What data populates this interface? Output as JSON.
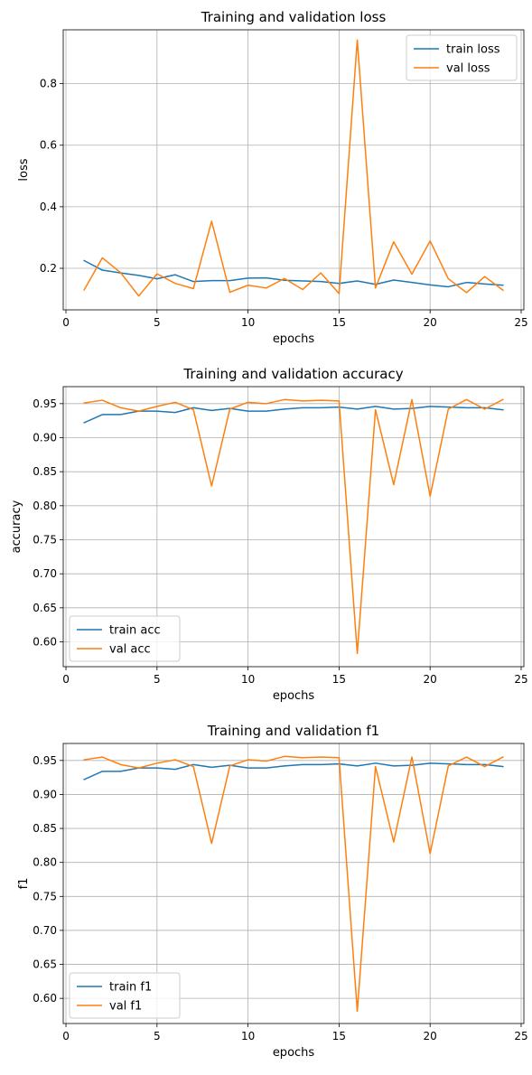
{
  "colors": {
    "train": "#1f77b4",
    "val": "#ff7f0e",
    "grid": "#b0b0b0"
  },
  "chart_data": [
    {
      "type": "line",
      "title": "Training and validation loss",
      "xlabel": "epochs",
      "ylabel": "loss",
      "xlim": [
        -0.15,
        25.15
      ],
      "ylim": [
        0.065,
        0.975
      ],
      "xticks": [
        0,
        5,
        10,
        15,
        20,
        25
      ],
      "yticks": [
        0.2,
        0.4,
        0.6,
        0.8
      ],
      "ytick_labels": [
        "0.2",
        "0.4",
        "0.6",
        "0.8"
      ],
      "grid": true,
      "legend": "top-right",
      "x": [
        1,
        2,
        3,
        4,
        5,
        6,
        7,
        8,
        9,
        10,
        11,
        12,
        13,
        14,
        15,
        16,
        17,
        18,
        19,
        20,
        21,
        22,
        23,
        24
      ],
      "series": [
        {
          "name": "train loss",
          "color": "#1f77b4",
          "values": [
            0.225,
            0.194,
            0.185,
            0.177,
            0.166,
            0.179,
            0.157,
            0.16,
            0.16,
            0.168,
            0.169,
            0.161,
            0.159,
            0.157,
            0.151,
            0.159,
            0.148,
            0.162,
            0.154,
            0.146,
            0.14,
            0.154,
            0.149,
            0.145
          ]
        },
        {
          "name": "val loss",
          "color": "#ff7f0e",
          "values": [
            0.13,
            0.234,
            0.186,
            0.11,
            0.182,
            0.151,
            0.134,
            0.353,
            0.122,
            0.145,
            0.136,
            0.167,
            0.131,
            0.185,
            0.118,
            0.942,
            0.136,
            0.286,
            0.181,
            0.289,
            0.166,
            0.121,
            0.173,
            0.129
          ]
        }
      ]
    },
    {
      "type": "line",
      "title": "Training and validation accuracy",
      "xlabel": "epochs",
      "ylabel": "accuracy",
      "xlim": [
        -0.15,
        25.15
      ],
      "ylim": [
        0.5635,
        0.975
      ],
      "xticks": [
        0,
        5,
        10,
        15,
        20,
        25
      ],
      "yticks": [
        0.6,
        0.65,
        0.7,
        0.75,
        0.8,
        0.85,
        0.9,
        0.95
      ],
      "ytick_labels": [
        "0.60",
        "0.65",
        "0.70",
        "0.75",
        "0.80",
        "0.85",
        "0.90",
        "0.95"
      ],
      "grid": true,
      "legend": "bottom-left",
      "x": [
        1,
        2,
        3,
        4,
        5,
        6,
        7,
        8,
        9,
        10,
        11,
        12,
        13,
        14,
        15,
        16,
        17,
        18,
        19,
        20,
        21,
        22,
        23,
        24
      ],
      "series": [
        {
          "name": "train acc",
          "color": "#1f77b4",
          "values": [
            0.922,
            0.934,
            0.934,
            0.939,
            0.939,
            0.937,
            0.944,
            0.94,
            0.943,
            0.939,
            0.939,
            0.942,
            0.944,
            0.944,
            0.945,
            0.942,
            0.946,
            0.942,
            0.943,
            0.946,
            0.945,
            0.944,
            0.944,
            0.941
          ]
        },
        {
          "name": "val acc",
          "color": "#ff7f0e",
          "values": [
            0.951,
            0.955,
            0.944,
            0.939,
            0.946,
            0.952,
            0.941,
            0.829,
            0.942,
            0.952,
            0.95,
            0.956,
            0.954,
            0.955,
            0.954,
            0.583,
            0.941,
            0.831,
            0.956,
            0.814,
            0.942,
            0.956,
            0.942,
            0.956
          ]
        }
      ]
    },
    {
      "type": "line",
      "title": "Training and validation f1",
      "xlabel": "epochs",
      "ylabel": "f1",
      "xlim": [
        -0.15,
        25.15
      ],
      "ylim": [
        0.563,
        0.975
      ],
      "xticks": [
        0,
        5,
        10,
        15,
        20,
        25
      ],
      "yticks": [
        0.6,
        0.65,
        0.7,
        0.75,
        0.8,
        0.85,
        0.9,
        0.95
      ],
      "ytick_labels": [
        "0.60",
        "0.65",
        "0.70",
        "0.75",
        "0.80",
        "0.85",
        "0.90",
        "0.95"
      ],
      "grid": true,
      "legend": "bottom-left",
      "x": [
        1,
        2,
        3,
        4,
        5,
        6,
        7,
        8,
        9,
        10,
        11,
        12,
        13,
        14,
        15,
        16,
        17,
        18,
        19,
        20,
        21,
        22,
        23,
        24
      ],
      "series": [
        {
          "name": "train f1",
          "color": "#1f77b4",
          "values": [
            0.922,
            0.934,
            0.934,
            0.939,
            0.939,
            0.937,
            0.944,
            0.94,
            0.943,
            0.939,
            0.939,
            0.942,
            0.944,
            0.944,
            0.945,
            0.942,
            0.946,
            0.942,
            0.943,
            0.946,
            0.945,
            0.944,
            0.944,
            0.941
          ]
        },
        {
          "name": "val f1",
          "color": "#ff7f0e",
          "values": [
            0.951,
            0.955,
            0.944,
            0.939,
            0.946,
            0.951,
            0.941,
            0.828,
            0.942,
            0.951,
            0.949,
            0.956,
            0.954,
            0.955,
            0.954,
            0.581,
            0.941,
            0.83,
            0.955,
            0.813,
            0.942,
            0.955,
            0.941,
            0.955
          ]
        }
      ]
    }
  ]
}
